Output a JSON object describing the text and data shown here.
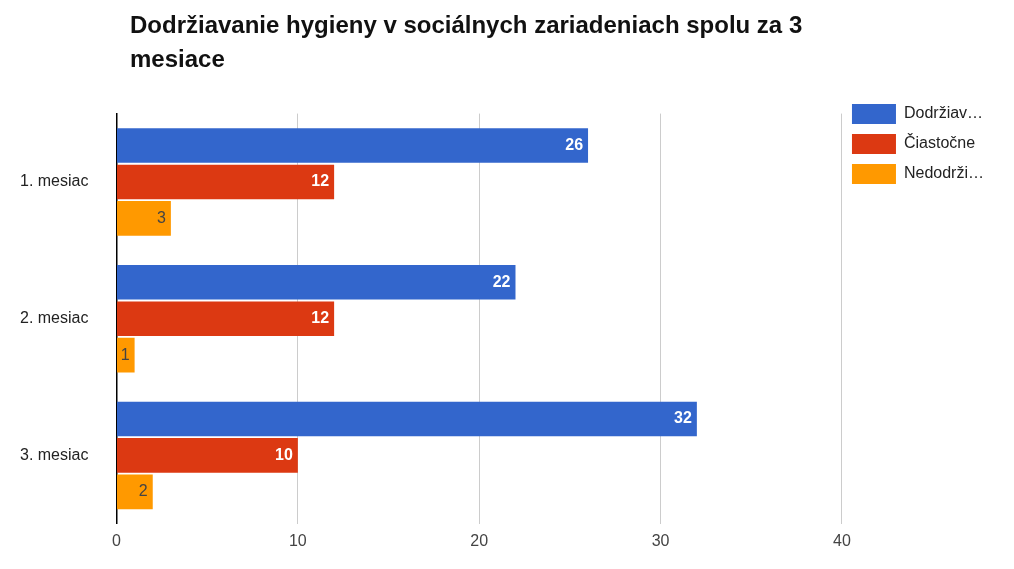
{
  "chart_data": {
    "type": "bar",
    "orientation": "horizontal",
    "title": "Dodržiavanie hygieny v sociálnych zariadeniach spolu za 3 mesiace",
    "categories": [
      "1. mesiac",
      "2. mesiac",
      "3. mesiac"
    ],
    "series": [
      {
        "name": "Dodržiav…",
        "color": "#3366cc",
        "values": [
          26,
          22,
          32
        ]
      },
      {
        "name": "Čiastočne",
        "color": "#dc3912",
        "values": [
          12,
          12,
          10
        ]
      },
      {
        "name": "Nedodrži…",
        "color": "#ff9900",
        "values": [
          3,
          1,
          2
        ]
      }
    ],
    "xlim": [
      0,
      40
    ],
    "xticks": [
      0,
      10,
      20,
      30,
      40
    ],
    "grid": "x",
    "legend": "top right",
    "data_labels": true
  }
}
